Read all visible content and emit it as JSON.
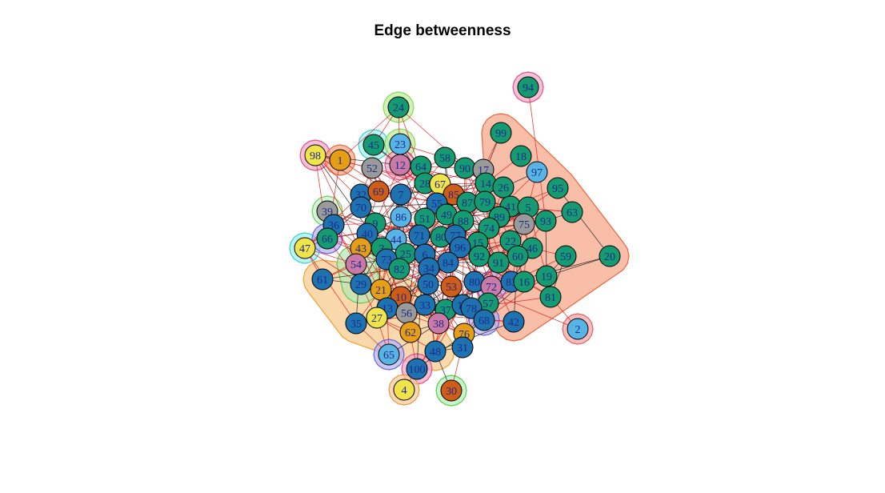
{
  "title": "Edge betweenness",
  "palette": {
    "green": "#159a72",
    "blue": "#1f72b0",
    "orange": "#e69e16",
    "vermillion": "#cf5d17",
    "sky": "#59b4e6",
    "yellow": "#efe44c",
    "pink": "#c97aa7",
    "grey": "#9a9a9a",
    "edge_between": "#e02020",
    "edge_within": "#222222"
  },
  "groups": [
    {
      "id": "g-main-orange",
      "fill": "#f6c98a",
      "stroke": "#f0a030",
      "members": [
        "10",
        "21",
        "62",
        "48",
        "29",
        "61",
        "35",
        "27",
        "56",
        "13"
      ]
    },
    {
      "id": "g-right-salmon",
      "fill": "#f5a587",
      "stroke": "#e8673c",
      "members": [
        "99",
        "18",
        "97",
        "95",
        "63",
        "20",
        "59",
        "19",
        "81",
        "42",
        "93",
        "75"
      ]
    },
    {
      "id": "g-94",
      "fill": "#f3a8c8",
      "stroke": "#e0508e",
      "members": [
        "94"
      ]
    },
    {
      "id": "g-98",
      "fill": "#f3a8c8",
      "stroke": "#e0508e",
      "members": [
        "98"
      ]
    },
    {
      "id": "g-1",
      "fill": "#f5a587",
      "stroke": "#e8673c",
      "members": [
        "1"
      ]
    },
    {
      "id": "g-24",
      "fill": "#bff09a",
      "stroke": "#8ed35a",
      "members": [
        "24"
      ]
    },
    {
      "id": "g-45",
      "fill": "#9ff0ee",
      "stroke": "#3cd0d0",
      "members": [
        "45"
      ]
    },
    {
      "id": "g-23",
      "fill": "#bff09a",
      "stroke": "#8ed35a",
      "members": [
        "23"
      ]
    },
    {
      "id": "g-12",
      "fill": "#f3a8c8",
      "stroke": "#e0508e",
      "members": [
        "12"
      ]
    },
    {
      "id": "g-39",
      "fill": "#c4f0c4",
      "stroke": "#6ad06a",
      "members": [
        "39"
      ]
    },
    {
      "id": "g-47",
      "fill": "#9ff0ee",
      "stroke": "#3cd0d0",
      "members": [
        "47"
      ]
    },
    {
      "id": "g-66",
      "fill": "#b6b2f0",
      "stroke": "#6a62e0",
      "members": [
        "66"
      ]
    },
    {
      "id": "g-54",
      "fill": "#b6e8b6",
      "stroke": "#5acb5a",
      "members": [
        "54",
        "29"
      ]
    },
    {
      "id": "g-2",
      "fill": "#f5a5a5",
      "stroke": "#e06060",
      "members": [
        "2"
      ]
    },
    {
      "id": "g-65",
      "fill": "#b6b2f0",
      "stroke": "#6a62e0",
      "members": [
        "65"
      ]
    },
    {
      "id": "g-100",
      "fill": "#f3a8c8",
      "stroke": "#e0508e",
      "members": [
        "100"
      ]
    },
    {
      "id": "g-4",
      "fill": "#f8c99a",
      "stroke": "#e89648",
      "members": [
        "4"
      ]
    },
    {
      "id": "g-30",
      "fill": "#b6f0b6",
      "stroke": "#4fd04f",
      "members": [
        "30"
      ]
    },
    {
      "id": "g-68",
      "fill": "#b6b2f0",
      "stroke": "#6a62e0",
      "members": [
        "68"
      ]
    },
    {
      "id": "g-72",
      "fill": "#b6b2f0",
      "stroke": "#6a62e0",
      "members": [
        "72"
      ]
    }
  ],
  "nodes": [
    {
      "id": "94",
      "color": "green"
    },
    {
      "id": "24",
      "color": "green"
    },
    {
      "id": "99",
      "color": "green"
    },
    {
      "id": "45",
      "color": "green"
    },
    {
      "id": "23",
      "color": "sky"
    },
    {
      "id": "98",
      "color": "yellow"
    },
    {
      "id": "1",
      "color": "orange"
    },
    {
      "id": "58",
      "color": "green"
    },
    {
      "id": "18",
      "color": "green"
    },
    {
      "id": "52",
      "color": "grey"
    },
    {
      "id": "12",
      "color": "pink"
    },
    {
      "id": "64",
      "color": "green"
    },
    {
      "id": "90",
      "color": "green"
    },
    {
      "id": "17",
      "color": "grey"
    },
    {
      "id": "97",
      "color": "sky"
    },
    {
      "id": "28",
      "color": "green"
    },
    {
      "id": "67",
      "color": "yellow"
    },
    {
      "id": "14",
      "color": "green"
    },
    {
      "id": "26",
      "color": "green"
    },
    {
      "id": "95",
      "color": "green"
    },
    {
      "id": "32",
      "color": "blue"
    },
    {
      "id": "69",
      "color": "vermillion"
    },
    {
      "id": "7",
      "color": "blue"
    },
    {
      "id": "85",
      "color": "vermillion"
    },
    {
      "id": "70",
      "color": "blue"
    },
    {
      "id": "55",
      "color": "blue"
    },
    {
      "id": "87",
      "color": "green"
    },
    {
      "id": "79",
      "color": "green"
    },
    {
      "id": "41",
      "color": "green"
    },
    {
      "id": "5",
      "color": "green"
    },
    {
      "id": "63",
      "color": "green"
    },
    {
      "id": "39",
      "color": "grey"
    },
    {
      "id": "86",
      "color": "sky"
    },
    {
      "id": "49",
      "color": "green"
    },
    {
      "id": "51",
      "color": "green"
    },
    {
      "id": "88",
      "color": "green"
    },
    {
      "id": "89",
      "color": "green"
    },
    {
      "id": "93",
      "color": "green"
    },
    {
      "id": "75",
      "color": "grey"
    },
    {
      "id": "36",
      "color": "blue"
    },
    {
      "id": "9",
      "color": "green"
    },
    {
      "id": "40",
      "color": "blue"
    },
    {
      "id": "74",
      "color": "green"
    },
    {
      "id": "66",
      "color": "green"
    },
    {
      "id": "71",
      "color": "blue"
    },
    {
      "id": "80",
      "color": "green"
    },
    {
      "id": "77",
      "color": "blue"
    },
    {
      "id": "44",
      "color": "sky"
    },
    {
      "id": "22",
      "color": "green"
    },
    {
      "id": "47",
      "color": "yellow"
    },
    {
      "id": "43",
      "color": "orange"
    },
    {
      "id": "15",
      "color": "green"
    },
    {
      "id": "96",
      "color": "blue"
    },
    {
      "id": "46",
      "color": "green"
    },
    {
      "id": "3",
      "color": "green"
    },
    {
      "id": "25",
      "color": "green"
    },
    {
      "id": "6",
      "color": "blue"
    },
    {
      "id": "59",
      "color": "green"
    },
    {
      "id": "20",
      "color": "green"
    },
    {
      "id": "73",
      "color": "blue"
    },
    {
      "id": "92",
      "color": "green"
    },
    {
      "id": "60",
      "color": "green"
    },
    {
      "id": "54",
      "color": "pink"
    },
    {
      "id": "84",
      "color": "blue"
    },
    {
      "id": "91",
      "color": "green"
    },
    {
      "id": "82",
      "color": "green"
    },
    {
      "id": "34",
      "color": "blue"
    },
    {
      "id": "61",
      "color": "blue"
    },
    {
      "id": "29",
      "color": "blue"
    },
    {
      "id": "50",
      "color": "blue"
    },
    {
      "id": "53",
      "color": "vermillion"
    },
    {
      "id": "80b",
      "label": "80",
      "color": "blue"
    },
    {
      "id": "72",
      "color": "pink"
    },
    {
      "id": "83",
      "color": "blue"
    },
    {
      "id": "16",
      "color": "green"
    },
    {
      "id": "19",
      "color": "green"
    },
    {
      "id": "21",
      "color": "orange"
    },
    {
      "id": "10",
      "color": "vermillion"
    },
    {
      "id": "81",
      "color": "green"
    },
    {
      "id": "13",
      "color": "blue"
    },
    {
      "id": "33",
      "color": "blue"
    },
    {
      "id": "57",
      "color": "green"
    },
    {
      "id": "56",
      "color": "grey"
    },
    {
      "id": "37",
      "color": "green"
    },
    {
      "id": "11",
      "color": "blue"
    },
    {
      "id": "78",
      "color": "blue"
    },
    {
      "id": "27",
      "color": "yellow"
    },
    {
      "id": "35",
      "color": "blue"
    },
    {
      "id": "68",
      "color": "blue"
    },
    {
      "id": "42",
      "color": "blue"
    },
    {
      "id": "2",
      "color": "sky"
    },
    {
      "id": "62",
      "color": "orange"
    },
    {
      "id": "38",
      "color": "pink"
    },
    {
      "id": "76",
      "color": "orange"
    },
    {
      "id": "31",
      "color": "blue"
    },
    {
      "id": "65",
      "color": "sky"
    },
    {
      "id": "48",
      "color": "blue"
    },
    {
      "id": "100",
      "color": "blue"
    },
    {
      "id": "4",
      "color": "yellow"
    },
    {
      "id": "30",
      "color": "vermillion"
    }
  ]
}
